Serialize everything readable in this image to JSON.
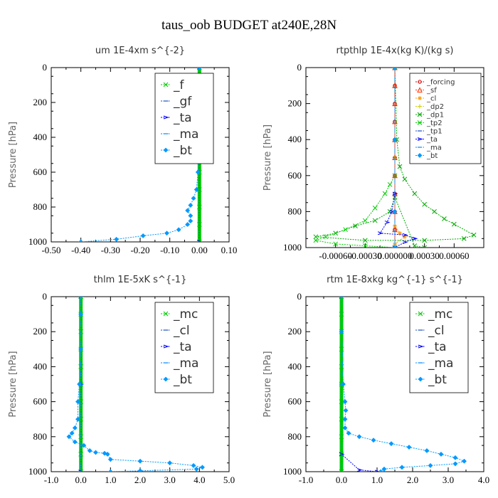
{
  "figure": {
    "title": "taus_oob  BUDGET at240E,28N"
  },
  "chart_data": [
    {
      "type": "line",
      "title": "um   1E-4xm s^{-2}",
      "ylabel": "Pressure [hPa]",
      "xlim": [
        -0.5,
        0.1
      ],
      "ylim": [
        0,
        1000
      ],
      "y_inverted": true,
      "xticks": [
        "-0.50",
        "-0.40",
        "-0.30",
        "-0.20",
        "-0.10",
        "0.00",
        "0.10"
      ],
      "xtick_values": [
        -0.5,
        -0.4,
        -0.3,
        -0.2,
        -0.1,
        0.0,
        0.1
      ],
      "yticks": [
        "0",
        "200",
        "400",
        "600",
        "800",
        "1000"
      ],
      "ytick_values": [
        0,
        200,
        400,
        600,
        800,
        1000
      ],
      "legend": {
        "position": "top-right",
        "size": "large",
        "entries": [
          "_f",
          "_gf",
          "_ta",
          "_ma",
          "_bt"
        ]
      },
      "series": [
        {
          "name": "_f",
          "color": "#00cc00",
          "marker": "x",
          "x": [
            0,
            0,
            0,
            0,
            0,
            0,
            0,
            0,
            0,
            0,
            0
          ],
          "y": [
            0,
            100,
            200,
            300,
            400,
            500,
            600,
            700,
            800,
            900,
            1000
          ]
        },
        {
          "name": "_gf",
          "color": "#1a4fbf",
          "marker": "none",
          "x": [
            0,
            0,
            0,
            0,
            0
          ],
          "y": [
            0,
            250,
            500,
            750,
            1000
          ]
        },
        {
          "name": "_ta",
          "color": "#0000ff",
          "marker": "arrow",
          "x": [
            0,
            0,
            0
          ],
          "y": [
            0,
            500,
            1000
          ]
        },
        {
          "name": "_ma",
          "color": "#0088ff",
          "marker": "dash",
          "x": [
            0,
            0,
            0
          ],
          "y": [
            0,
            500,
            1000
          ]
        },
        {
          "name": "_bt",
          "color": "#0099ff",
          "marker": "diamond",
          "x": [
            0.0,
            0.0,
            0.0,
            -0.005,
            -0.01,
            -0.005,
            0.0,
            -0.005,
            -0.01,
            -0.02,
            -0.03,
            -0.04,
            -0.03,
            -0.03,
            -0.04,
            -0.07,
            -0.11,
            -0.19,
            -0.28,
            -0.4
          ],
          "y": [
            0,
            60,
            150,
            200,
            300,
            400,
            500,
            600,
            700,
            750,
            790,
            820,
            850,
            880,
            900,
            930,
            950,
            965,
            985,
            1000
          ]
        }
      ]
    },
    {
      "type": "line",
      "title": "rtpthlp   1E-4x(kg K)/(kg s)",
      "ylabel": "Pressure [hPa]",
      "xlim": [
        -0.0009,
        0.0009
      ],
      "ylim": [
        0,
        1000
      ],
      "y_inverted": true,
      "xticks": [
        "-0.00060",
        "-0.00030",
        "0.000000",
        "0.00030",
        "0.00060"
      ],
      "xtick_values": [
        -0.0006,
        -0.0003,
        0.0,
        0.0003,
        0.0006
      ],
      "yticks": [
        "0",
        "200",
        "400",
        "600",
        "800",
        "1000"
      ],
      "ytick_values": [
        0,
        200,
        400,
        600,
        800,
        1000
      ],
      "legend": {
        "position": "top-right",
        "size": "small",
        "entries": [
          "_forcing",
          "_sf",
          "_cl",
          "_dp2",
          "_dp1",
          "_tp2",
          "_tp1",
          "_ta",
          "_ma",
          "_bt"
        ]
      },
      "series": [
        {
          "name": "_forcing",
          "color": "#cc0000",
          "marker": "circle",
          "x": [
            0,
            0,
            0,
            0,
            0,
            0,
            0,
            0,
            0,
            0,
            0
          ],
          "y": [
            0,
            100,
            200,
            300,
            400,
            500,
            600,
            700,
            800,
            900,
            1000
          ]
        },
        {
          "name": "_sf",
          "color": "#ff3300",
          "marker": "triangle",
          "x": [
            0,
            0,
            0,
            0,
            0,
            0,
            0,
            0,
            0,
            0,
            0
          ],
          "y": [
            0,
            100,
            200,
            300,
            400,
            500,
            600,
            700,
            800,
            900,
            1000
          ]
        },
        {
          "name": "_cl",
          "color": "#ff9900",
          "marker": "star",
          "x": [
            0,
            0,
            0,
            5e-05,
            0.0001,
            0.0
          ],
          "y": [
            0,
            500,
            880,
            920,
            940,
            980
          ]
        },
        {
          "name": "_dp2",
          "color": "#cccc00",
          "marker": "plus",
          "x": [
            0,
            0,
            0
          ],
          "y": [
            0,
            500,
            1000
          ]
        },
        {
          "name": "_dp1",
          "color": "#00aa00",
          "marker": "x",
          "x": [
            0.0,
            2e-05,
            5e-05,
            0.0001,
            0.0002,
            0.0003,
            0.0004,
            0.0005,
            0.0006,
            0.0008,
            0.0007,
            0.0003,
            -0.0003,
            -0.0008,
            -0.0006,
            -0.0004,
            -0.0002,
            -5e-05,
            0.0,
            0.0002,
            0.0003
          ],
          "y": [
            0,
            400,
            550,
            620,
            700,
            760,
            800,
            840,
            870,
            930,
            950,
            960,
            960,
            940,
            920,
            880,
            850,
            800,
            720,
            990,
            1000
          ]
        },
        {
          "name": "_tp2",
          "color": "#00cc00",
          "marker": "x",
          "x": [
            0.0,
            0.0,
            -5e-05,
            -0.0001,
            -0.0002,
            -0.0003,
            -0.0005,
            -0.0007,
            -0.0008,
            -0.0006,
            -0.0003,
            0.0
          ],
          "y": [
            0,
            600,
            650,
            700,
            780,
            850,
            900,
            940,
            960,
            980,
            990,
            1000
          ]
        },
        {
          "name": "_tp1",
          "color": "#1a4fbf",
          "marker": "none",
          "x": [
            0,
            0,
            0
          ],
          "y": [
            0,
            500,
            1000
          ]
        },
        {
          "name": "_ta",
          "color": "#0000ff",
          "marker": "arrow",
          "x": [
            0.0,
            -3e-05,
            -8e-05,
            -0.00015,
            0.0001,
            0.0002,
            0.0001,
            0.0
          ],
          "y": [
            700,
            800,
            860,
            920,
            930,
            950,
            970,
            1000
          ]
        },
        {
          "name": "_ma",
          "color": "#0088ff",
          "marker": "dash",
          "x": [
            0,
            0,
            0
          ],
          "y": [
            0,
            500,
            1000
          ]
        },
        {
          "name": "_bt",
          "color": "#0099ff",
          "marker": "diamond",
          "x": [
            0,
            0,
            0,
            0
          ],
          "y": [
            0,
            400,
            800,
            1000
          ]
        }
      ]
    },
    {
      "type": "line",
      "title": "thlm   1E-5xK s^{-1}",
      "ylabel": "Pressure [hPa]",
      "xlim": [
        -1.0,
        5.0
      ],
      "ylim": [
        0,
        1000
      ],
      "y_inverted": true,
      "xticks": [
        "-1.0",
        "0.0",
        "1.0",
        "2.0",
        "3.0",
        "4.0",
        "5.0"
      ],
      "xtick_values": [
        -1,
        0,
        1,
        2,
        3,
        4,
        5
      ],
      "yticks": [
        "0",
        "200",
        "400",
        "600",
        "800",
        "1000"
      ],
      "ytick_values": [
        0,
        200,
        400,
        600,
        800,
        1000
      ],
      "legend": {
        "position": "top-right",
        "size": "large",
        "entries": [
          "_mc",
          "_cl",
          "_ta",
          "_ma",
          "_bt"
        ]
      },
      "series": [
        {
          "name": "_mc",
          "color": "#00cc00",
          "marker": "x",
          "x": [
            0,
            0,
            0,
            0,
            0,
            0,
            0,
            0,
            0,
            0,
            0
          ],
          "y": [
            0,
            100,
            200,
            300,
            400,
            500,
            600,
            700,
            800,
            900,
            1000
          ]
        },
        {
          "name": "_cl",
          "color": "#1a4fbf",
          "marker": "none",
          "x": [
            0,
            0,
            0
          ],
          "y": [
            0,
            500,
            1000
          ]
        },
        {
          "name": "_ta",
          "color": "#0000ff",
          "marker": "arrow",
          "x": [
            0,
            0,
            0
          ],
          "y": [
            0,
            500,
            1000
          ]
        },
        {
          "name": "_ma",
          "color": "#0088ff",
          "marker": "dash",
          "x": [
            0,
            0,
            0
          ],
          "y": [
            0,
            500,
            1000
          ]
        },
        {
          "name": "_bt",
          "color": "#0099ff",
          "marker": "diamond",
          "x": [
            0.0,
            0.0,
            0.0,
            -0.05,
            -0.1,
            -0.1,
            -0.2,
            -0.3,
            -0.4,
            -0.2,
            0.1,
            0.3,
            0.5,
            0.8,
            0.9,
            1.0,
            2.0,
            3.0,
            3.8,
            4.1,
            3.9,
            2.0,
            1.0
          ],
          "y": [
            0,
            100,
            300,
            500,
            600,
            700,
            750,
            780,
            800,
            830,
            850,
            880,
            890,
            895,
            900,
            930,
            940,
            950,
            965,
            975,
            985,
            995,
            1000
          ]
        }
      ]
    },
    {
      "type": "line",
      "title": "rtm   1E-8xkg kg^{-1} s^{-1}",
      "ylabel": "Pressure [hPa]",
      "xlim": [
        -1.0,
        4.0
      ],
      "ylim": [
        0,
        1000
      ],
      "y_inverted": true,
      "xticks": [
        "-1.0",
        "0.0",
        "1.0",
        "2.0",
        "3.0",
        "4.0"
      ],
      "xtick_values": [
        -1,
        0,
        1,
        2,
        3,
        4
      ],
      "yticks": [
        "0",
        "200",
        "400",
        "600",
        "800",
        "1000"
      ],
      "ytick_values": [
        0,
        200,
        400,
        600,
        800,
        1000
      ],
      "legend": {
        "position": "top-right",
        "size": "large",
        "entries": [
          "_mc",
          "_cl",
          "_ta",
          "_ma",
          "_bt"
        ]
      },
      "series": [
        {
          "name": "_mc",
          "color": "#00cc00",
          "marker": "x",
          "x": [
            0,
            0,
            0,
            0,
            0,
            0,
            0,
            0,
            0,
            0,
            0
          ],
          "y": [
            0,
            100,
            200,
            300,
            400,
            500,
            600,
            700,
            800,
            900,
            1000
          ]
        },
        {
          "name": "_cl",
          "color": "#1a4fbf",
          "marker": "none",
          "x": [
            0,
            0,
            0
          ],
          "y": [
            0,
            500,
            1000
          ]
        },
        {
          "name": "_ta",
          "color": "#0000ff",
          "marker": "arrow",
          "x": [
            0.0,
            0.0,
            0.5,
            1.0
          ],
          "y": [
            0,
            900,
            990,
            1000
          ]
        },
        {
          "name": "_ma",
          "color": "#0088ff",
          "marker": "dash",
          "x": [
            0,
            0,
            0
          ],
          "y": [
            0,
            500,
            1000
          ]
        },
        {
          "name": "_bt",
          "color": "#0099ff",
          "marker": "diamond",
          "x": [
            0.0,
            0.0,
            0.05,
            0.1,
            0.12,
            0.1,
            0.1,
            0.2,
            0.5,
            0.9,
            1.4,
            1.9,
            2.4,
            2.8,
            3.2,
            3.45,
            3.2,
            2.5,
            1.7,
            1.2,
            1.1
          ],
          "y": [
            0,
            200,
            500,
            600,
            650,
            700,
            750,
            780,
            800,
            820,
            840,
            860,
            880,
            900,
            920,
            940,
            955,
            965,
            975,
            985,
            1000
          ]
        }
      ]
    }
  ]
}
